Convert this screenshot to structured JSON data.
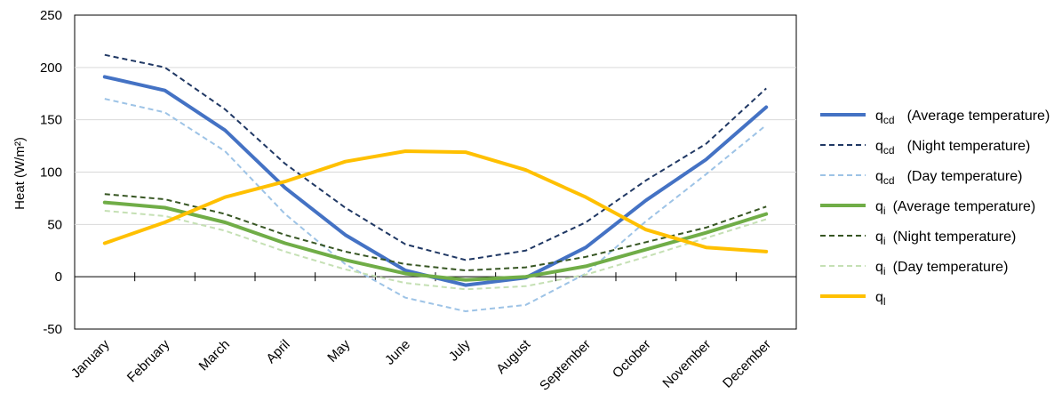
{
  "chart_data": {
    "type": "line",
    "title": "",
    "xlabel": "",
    "ylabel": "Heat (W/m²)",
    "ylim": [
      -50,
      250
    ],
    "yticks": [
      -50,
      0,
      50,
      100,
      150,
      200,
      250
    ],
    "grid": true,
    "legend_position": "right",
    "categories": [
      "January",
      "February",
      "March",
      "April",
      "May",
      "June",
      "July",
      "August",
      "September",
      "October",
      "November",
      "December"
    ],
    "series": [
      {
        "key": "qcd_avg",
        "symbol": "q",
        "sub": "cd",
        "name": "(Average temperature)",
        "color": "#4472C4",
        "dash": "solid",
        "width": 4,
        "values": [
          191,
          178,
          140,
          85,
          40,
          6,
          -8,
          -1,
          28,
          73,
          112,
          162
        ]
      },
      {
        "key": "qcd_night",
        "symbol": "q",
        "sub": "cd",
        "name": "(Night temperature)",
        "color": "#203864",
        "dash": "dashed",
        "width": 2,
        "values": [
          212,
          200,
          160,
          108,
          66,
          31,
          16,
          25,
          52,
          92,
          127,
          180
        ]
      },
      {
        "key": "qcd_day",
        "symbol": "q",
        "sub": "cd",
        "name": "(Day temperature)",
        "color": "#9DC3E6",
        "dash": "dashed",
        "width": 2,
        "values": [
          170,
          157,
          120,
          60,
          12,
          -20,
          -33,
          -27,
          3,
          53,
          98,
          145
        ]
      },
      {
        "key": "qi_avg",
        "symbol": "q",
        "sub": "i",
        "name": "(Average temperature)",
        "color": "#70AD47",
        "dash": "solid",
        "width": 4,
        "values": [
          71,
          66,
          52,
          32,
          16,
          3,
          -3,
          0,
          10,
          26,
          42,
          60
        ]
      },
      {
        "key": "qi_night",
        "symbol": "q",
        "sub": "i",
        "name": "(Night temperature)",
        "color": "#375623",
        "dash": "dashed",
        "width": 2,
        "values": [
          79,
          74,
          60,
          40,
          24,
          12,
          6,
          9,
          19,
          33,
          47,
          67
        ]
      },
      {
        "key": "qi_day",
        "symbol": "q",
        "sub": "i",
        "name": "(Day temperature)",
        "color": "#C5E0B4",
        "dash": "dashed",
        "width": 2,
        "values": [
          63,
          58,
          44,
          24,
          7,
          -6,
          -12,
          -9,
          2,
          19,
          37,
          55
        ]
      },
      {
        "key": "ql",
        "symbol": "q",
        "sub": "l",
        "name": "",
        "color": "#FFC000",
        "dash": "solid",
        "width": 4,
        "values": [
          32,
          52,
          76,
          91,
          110,
          120,
          119,
          102,
          76,
          45,
          28,
          24
        ]
      }
    ]
  }
}
